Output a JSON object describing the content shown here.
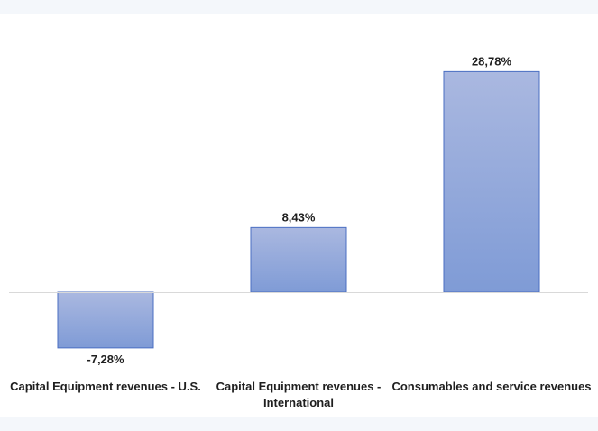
{
  "chart_data": {
    "type": "bar",
    "categories": [
      [
        "Capital Equipment revenues - U.S."
      ],
      [
        "Capital Equipment revenues -",
        "International"
      ],
      [
        "Consumables and service revenues"
      ]
    ],
    "values": [
      -7.28,
      8.43,
      28.78
    ],
    "data_labels": [
      "-7,28%",
      "8,43%",
      "28,78%"
    ],
    "ylim": [
      -8,
      30
    ],
    "grid": false,
    "legend": "none",
    "colors": {
      "bar_top": "#aab8e0",
      "bar_bottom": "#7f9bd6",
      "bar_border": "#4a6ec2",
      "zero_line": "#d9d9d9"
    }
  }
}
